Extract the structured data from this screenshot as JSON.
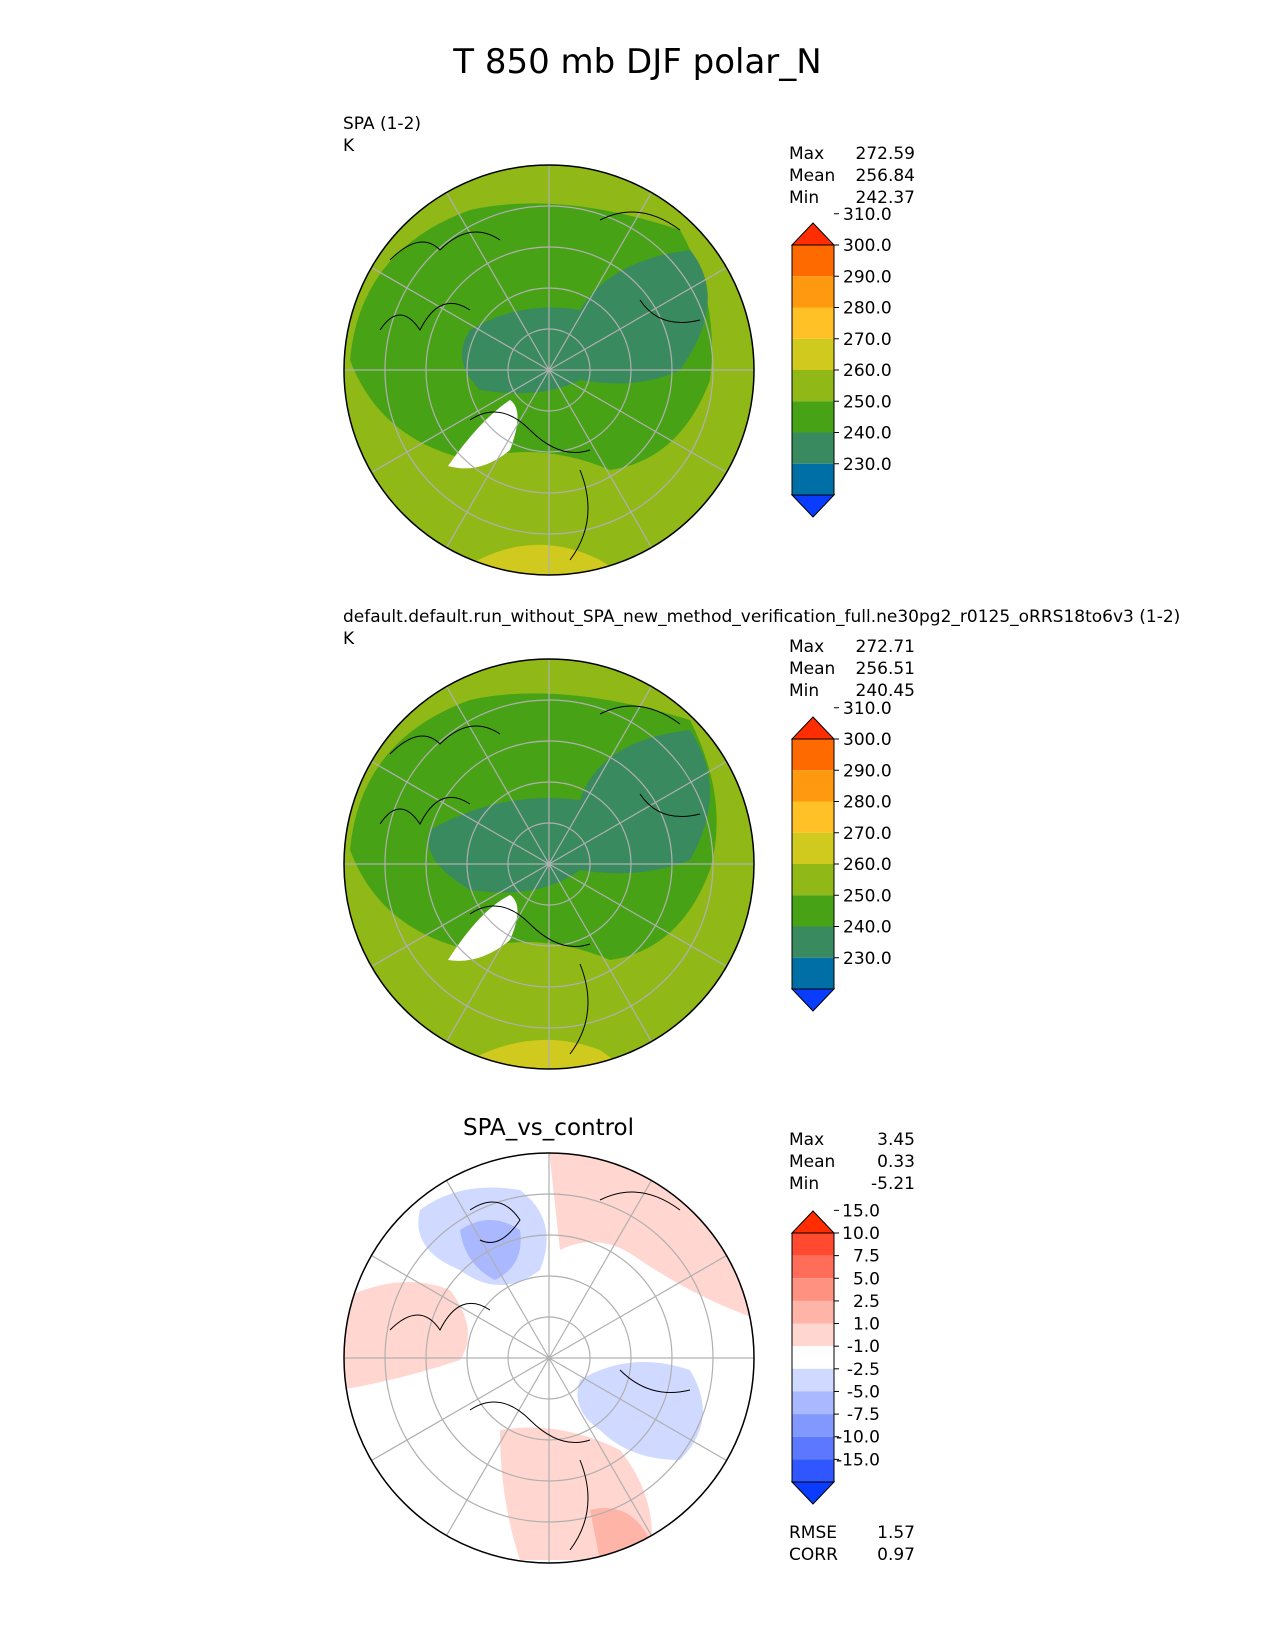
{
  "title": "T 850 mb DJF polar_N",
  "colors": {
    "land_outline": "#000000",
    "grid": "#b0b0b0",
    "seq_palette": [
      "#0a3cff",
      "#006fa6",
      "#3a8a5f",
      "#47a315",
      "#90b817",
      "#d0c91e",
      "#ffc125",
      "#ff9910",
      "#ff6a00",
      "#ff2d00"
    ],
    "diff_palette": [
      "#0a3cff",
      "#2f56ff",
      "#5b78ff",
      "#8198ff",
      "#a9b8ff",
      "#d0d9ff",
      "#ffffff",
      "#ffd6d0",
      "#ffb4a8",
      "#ff9180",
      "#ff6d58",
      "#ff4a30",
      "#ff2d00"
    ]
  },
  "panels": [
    {
      "title": "SPA (1-2)",
      "units": "K",
      "stats": [
        {
          "label": "Max",
          "value": "272.59"
        },
        {
          "label": "Mean",
          "value": "256.84"
        },
        {
          "label": "Min",
          "value": "242.37"
        }
      ],
      "colorbar_ticks": [
        "230.0",
        "240.0",
        "250.0",
        "260.0",
        "270.0",
        "280.0",
        "290.0",
        "300.0",
        "310.0"
      ],
      "map_icon": "north-polar-stereographic-temperature-map"
    },
    {
      "title": "default.default.run_without_SPA_new_method_verification_full.ne30pg2_r0125_oRRS18to6v3 (1-2)",
      "units": "K",
      "stats": [
        {
          "label": "Max",
          "value": "272.71"
        },
        {
          "label": "Mean",
          "value": "256.51"
        },
        {
          "label": "Min",
          "value": "240.45"
        }
      ],
      "colorbar_ticks": [
        "230.0",
        "240.0",
        "250.0",
        "260.0",
        "270.0",
        "280.0",
        "290.0",
        "300.0",
        "310.0"
      ],
      "map_icon": "north-polar-stereographic-temperature-map"
    },
    {
      "title": "SPA_vs_control",
      "stats": [
        {
          "label": "Max",
          "value": "3.45"
        },
        {
          "label": "Mean",
          "value": "0.33"
        },
        {
          "label": "Min",
          "value": "-5.21"
        }
      ],
      "colorbar_ticks": [
        "-15.0",
        "-10.0",
        "-7.5",
        "-5.0",
        "-2.5",
        "-1.0",
        "1.0",
        "2.5",
        "5.0",
        "7.5",
        "10.0",
        "15.0"
      ],
      "extra_stats": [
        {
          "label": "RMSE",
          "value": "1.57"
        },
        {
          "label": "CORR",
          "value": "0.97"
        }
      ],
      "map_icon": "north-polar-stereographic-difference-map"
    }
  ]
}
